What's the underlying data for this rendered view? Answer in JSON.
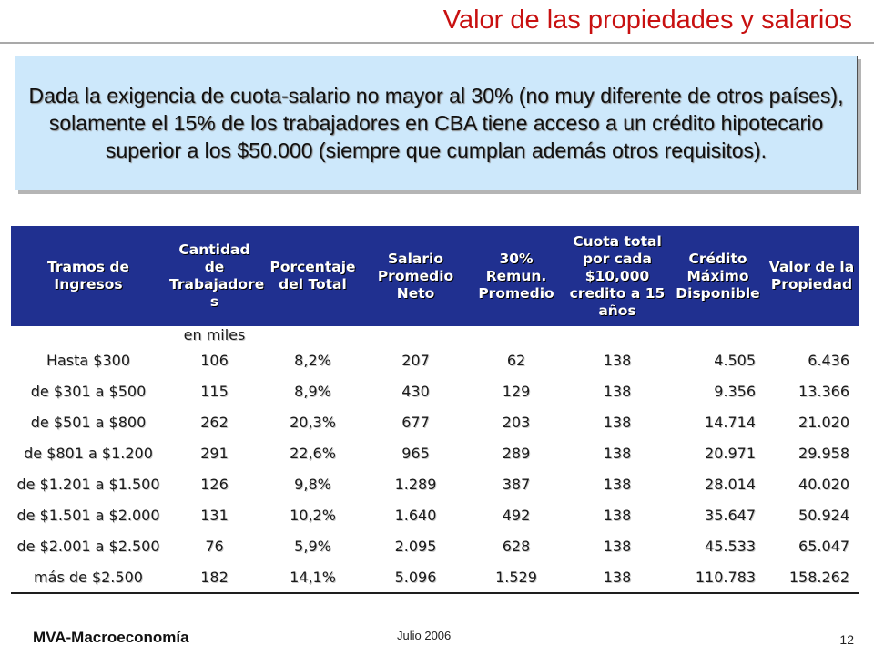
{
  "title": "Valor de las propiedades y salarios",
  "callout": "Dada la exigencia de cuota-salario no mayor al 30% (no muy diferente de otros países), solamente el 15% de los trabajadores en CBA tiene acceso a un crédito hipotecario superior a los $50.000 (siempre que cumplan además otros requisitos).",
  "table": {
    "headers": [
      "Tramos de Ingresos",
      "Cantidad de Trabajadore s",
      "Porcentaje del Total",
      "Salario Promedio Neto",
      "30% Remun. Promedio",
      "Cuota total por cada $10,000 credito a 15 años",
      "Crédito Máximo Disponible",
      "Valor de la Propiedad"
    ],
    "subheader": "en miles",
    "rows": [
      [
        "Hasta $300",
        "106",
        "8,2%",
        "207",
        "62",
        "138",
        "4.505",
        "6.436"
      ],
      [
        "de $301 a $500",
        "115",
        "8,9%",
        "430",
        "129",
        "138",
        "9.356",
        "13.366"
      ],
      [
        "de $501 a $800",
        "262",
        "20,3%",
        "677",
        "203",
        "138",
        "14.714",
        "21.020"
      ],
      [
        "de $801 a $1.200",
        "291",
        "22,6%",
        "965",
        "289",
        "138",
        "20.971",
        "29.958"
      ],
      [
        "de $1.201 a $1.500",
        "126",
        "9,8%",
        "1.289",
        "387",
        "138",
        "28.014",
        "40.020"
      ],
      [
        "de $1.501 a $2.000",
        "131",
        "10,2%",
        "1.640",
        "492",
        "138",
        "35.647",
        "50.924"
      ],
      [
        "de $2.001 a $2.500",
        "76",
        "5,9%",
        "2.095",
        "628",
        "138",
        "45.533",
        "65.047"
      ],
      [
        "más de $2.500",
        "182",
        "14,1%",
        "5.096",
        "1.529",
        "138",
        "110.783",
        "158.262"
      ]
    ]
  },
  "footer": {
    "left": "MVA-Macroeconomía",
    "center": "Julio 2006",
    "page": "12"
  }
}
